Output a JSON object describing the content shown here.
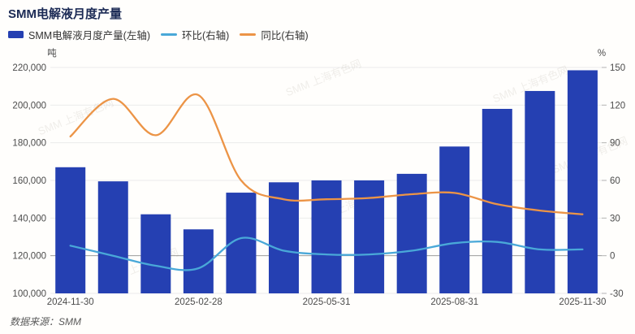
{
  "title": "SMM电解液月度产量",
  "legend": {
    "items": [
      {
        "label": "SMM电解液月度产量(左轴)",
        "marker": "bar",
        "color": "#2540b2"
      },
      {
        "label": "环比(右轴)",
        "marker": "line",
        "color": "#49a8d8"
      },
      {
        "label": "同比(右轴)",
        "marker": "line",
        "color": "#ec9446"
      }
    ]
  },
  "footer": {
    "source_label": "数据来源：SMM"
  },
  "watermark": {
    "text": "SMM 上海有色网"
  },
  "chart_data": {
    "type": "bar",
    "title": "SMM电解液月度产量",
    "n_points": 13,
    "categories_visible": [
      "2024-11-30",
      "2025-02-28",
      "2025-05-31",
      "2025-08-31",
      "2025-11-30"
    ],
    "x_tick_indices": [
      0,
      3,
      6,
      9,
      12
    ],
    "left_axis": {
      "unit": "吨",
      "min": 100000,
      "max": 220000,
      "tick_labels": [
        "220,000",
        "200,000",
        "180,000",
        "160,000",
        "140,000",
        "120,000",
        "100,000"
      ]
    },
    "right_axis": {
      "unit": "%",
      "min": -30,
      "max": 150,
      "tick_labels": [
        "150",
        "120",
        "90",
        "60",
        "30",
        "0",
        "-30"
      ]
    },
    "grid": true,
    "legend_position": "top-left",
    "series": [
      {
        "name": "SMM电解液月度产量(左轴)",
        "type": "bar",
        "axis": "left",
        "color": "#2540b2",
        "values": [
          167000,
          159500,
          142000,
          134000,
          153500,
          159000,
          160000,
          160000,
          163500,
          178000,
          198000,
          207500,
          218500
        ]
      },
      {
        "name": "环比(右轴)",
        "type": "line",
        "axis": "right",
        "color": "#49a8d8",
        "values": [
          8,
          0,
          -8,
          -10,
          14,
          4,
          1,
          1,
          4,
          10,
          11,
          5,
          5
        ]
      },
      {
        "name": "同比(右轴)",
        "type": "line",
        "axis": "right",
        "color": "#ec9446",
        "values": [
          95,
          125,
          96,
          128,
          60,
          45,
          45,
          46,
          49,
          50,
          41,
          36,
          33
        ]
      }
    ]
  }
}
